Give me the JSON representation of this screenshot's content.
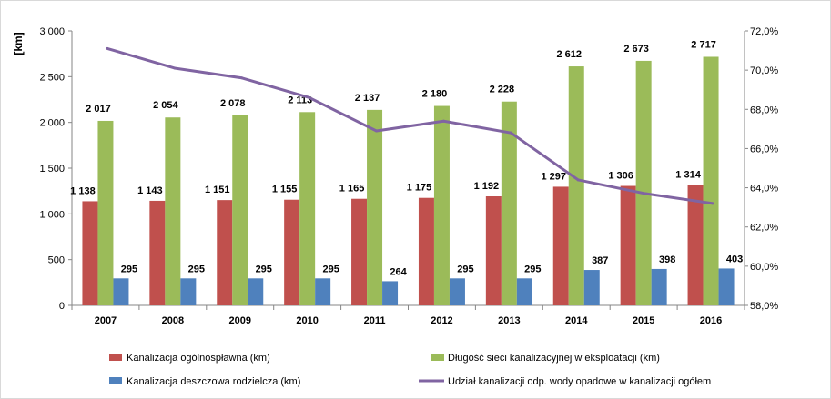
{
  "chart_data": {
    "type": "bar",
    "ylabel": "[km]",
    "categories": [
      "2007",
      "2008",
      "2009",
      "2010",
      "2011",
      "2012",
      "2013",
      "2014",
      "2015",
      "2016"
    ],
    "ylim": [
      0,
      3000
    ],
    "y_ticks": [
      0,
      500,
      1000,
      1500,
      2000,
      2500,
      3000
    ],
    "y_tick_labels": [
      "0",
      "500",
      "1 000",
      "1 500",
      "2 000",
      "2 500",
      "3 000"
    ],
    "y2lim": [
      58.0,
      72.0
    ],
    "y2_ticks": [
      58,
      60,
      62,
      64,
      66,
      68,
      70,
      72
    ],
    "y2_tick_labels": [
      "58,0%",
      "60,0%",
      "62,0%",
      "64,0%",
      "66,0%",
      "68,0%",
      "70,0%",
      "72,0%"
    ],
    "series": [
      {
        "name": "Kanalizacja ogólnospławna (km)",
        "kind": "bar",
        "color": "#c0504d",
        "values": [
          1138,
          1143,
          1151,
          1155,
          1165,
          1175,
          1192,
          1297,
          1306,
          1314
        ],
        "labels": [
          "1 138",
          "1 143",
          "1 151",
          "1 155",
          "1 165",
          "1 175",
          "1 192",
          "1 297",
          "1 306",
          "1 314"
        ]
      },
      {
        "name": "Długość sieci kanalizacyjnej w eksploatacji (km)",
        "kind": "bar",
        "color": "#9bbb59",
        "values": [
          2017,
          2054,
          2078,
          2113,
          2137,
          2180,
          2228,
          2612,
          2673,
          2717
        ],
        "labels": [
          "2 017",
          "2 054",
          "2 078",
          "2 113",
          "2 137",
          "2 180",
          "2 228",
          "2 612",
          "2 673",
          "2 717"
        ]
      },
      {
        "name": "Kanalizacja deszczowa rodzielcza (km)",
        "kind": "bar",
        "color": "#4f81bd",
        "values": [
          295,
          295,
          295,
          295,
          264,
          295,
          295,
          387,
          398,
          403
        ],
        "labels": [
          "295",
          "295",
          "295",
          "295",
          "264",
          "295",
          "295",
          "387",
          "398",
          "403"
        ]
      },
      {
        "name": "Udział kanalizacji odp. wody opadowe w kanalizacji ogółem",
        "kind": "line",
        "axis": "right",
        "color": "#8064a2",
        "values": [
          71.1,
          70.1,
          69.6,
          68.6,
          66.9,
          67.4,
          66.8,
          64.4,
          63.7,
          63.2
        ]
      }
    ],
    "legend_position": "bottom"
  }
}
